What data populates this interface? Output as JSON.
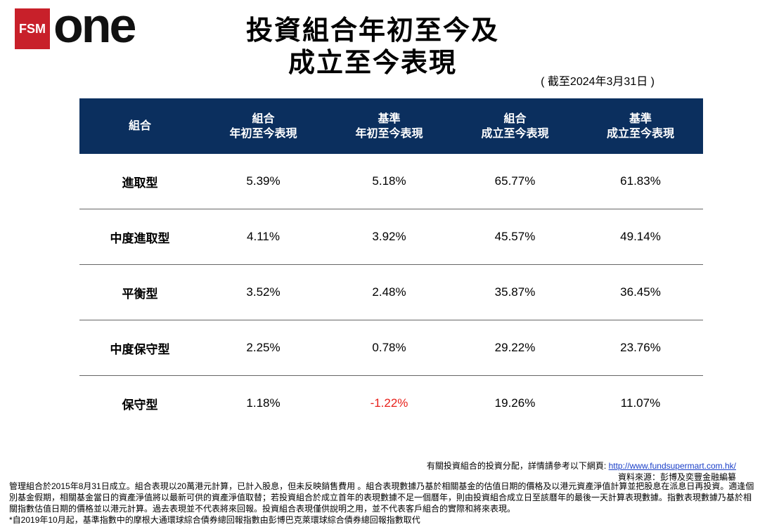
{
  "logo": {
    "fsm": "FSM",
    "one": "one"
  },
  "header": {
    "title_line1": "投資組合年初至今及",
    "title_line2": "成立至今表現",
    "as_of": "( 截至2024年3月31日 )"
  },
  "table": {
    "columns": [
      [
        "組合"
      ],
      [
        "組合",
        "年初至今表現"
      ],
      [
        "基準",
        "年初至今表現"
      ],
      [
        "組合",
        "成立至今表現"
      ],
      [
        "基準",
        "成立至今表現"
      ]
    ],
    "rows": [
      [
        "進取型",
        "5.39%",
        "5.18%",
        "65.77%",
        "61.83%"
      ],
      [
        "中度進取型",
        "4.11%",
        "3.92%",
        "45.57%",
        "49.14%"
      ],
      [
        "平衡型",
        "3.52%",
        "2.48%",
        "35.87%",
        "36.45%"
      ],
      [
        "中度保守型",
        "2.25%",
        "0.78%",
        "29.22%",
        "23.76%"
      ],
      [
        "保守型",
        "1.18%",
        "-1.22%",
        "19.26%",
        "11.07%"
      ]
    ]
  },
  "footer": {
    "link_intro": "有關投資組合的投資分配，詳情請參考以下網頁: ",
    "link": "http://www.fundsupermart.com.hk/",
    "source": "資料來源：彭博及奕豐金融編纂",
    "note": "管理組合於2015年8月31日成立。組合表現以20萬港元計算，已計入股息，但未反映銷售費用 。組合表現數據乃基於相關基金的估值日期的價格及以港元資產淨值計算並把股息在派息日再投資。適逢個別基金假期，相關基金當日的資產淨值將以最新可供的資產淨值取替；若投資組合於成立首年的表現數據不足一個曆年，則由投資組合成立日至該曆年的最後一天計算表現數據。指數表現數據乃基於相關指數估值日期的價格並以港元計算。過去表現並不代表將來回報。投資組合表現僅供說明之用，並不代表客戶組合的實際和將來表現。",
    "footnote": "*自2019年10月起，基準指數中的摩根大通環球綜合債券總回報指數由彭博巴克萊環球綜合債券總回報指數取代"
  }
}
